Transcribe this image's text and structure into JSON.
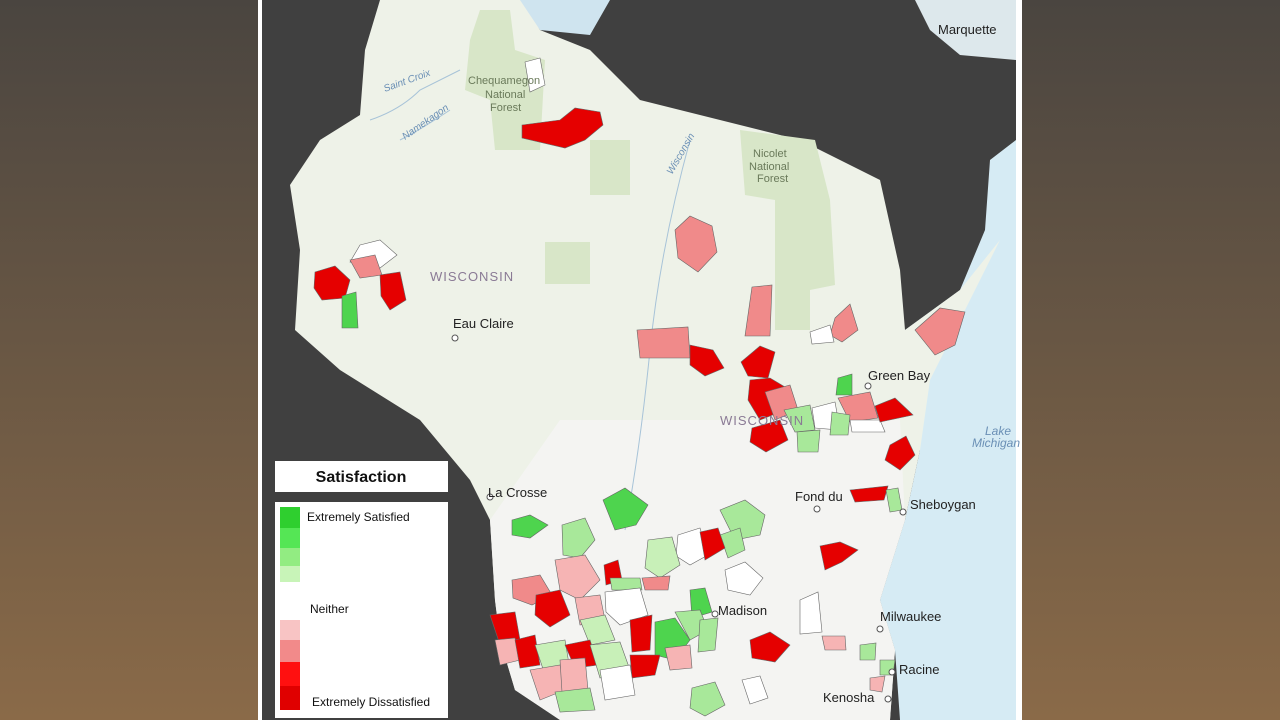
{
  "map": {
    "labels": [
      "Marquette",
      "Saint Croix",
      "Namekagon",
      "Chequamegon",
      "National",
      "Forest",
      "Wisconsin",
      "Nicolet",
      "National",
      "Forest",
      "WISCONSIN",
      "Eau Claire",
      "Green Bay",
      "WISCONSIN",
      "Lake",
      "Michigan",
      "La Crosse",
      "Fond du",
      "Sheboygan",
      "Madison",
      "Milwaukee",
      "Racine",
      "Kenosha"
    ]
  },
  "legend": {
    "title": "Satisfaction",
    "items": [
      "Extremely Satisfied",
      "Neither",
      "Extremely Dissatisfied"
    ]
  }
}
